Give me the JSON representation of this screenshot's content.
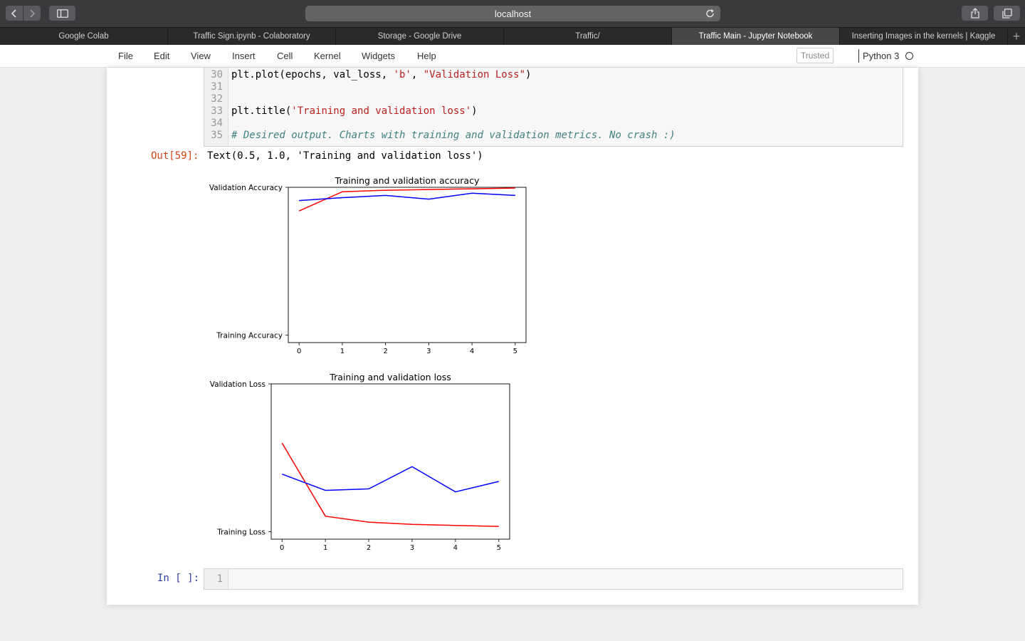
{
  "browser": {
    "url": "localhost",
    "tabs": [
      {
        "label": "Google Colab",
        "active": false
      },
      {
        "label": "Traffic Sign.ipynb - Colaboratory",
        "active": false
      },
      {
        "label": "Storage - Google Drive",
        "active": false
      },
      {
        "label": "Traffic/",
        "active": false
      },
      {
        "label": "Traffic Main - Jupyter Notebook",
        "active": true
      },
      {
        "label": "Inserting Images in the kernels | Kaggle",
        "active": false
      }
    ]
  },
  "menu": {
    "items": [
      "File",
      "Edit",
      "View",
      "Insert",
      "Cell",
      "Kernel",
      "Widgets",
      "Help"
    ],
    "trusted": "Trusted",
    "kernel": "Python 3"
  },
  "code_cell": {
    "lines": [
      {
        "num": "30",
        "parts": [
          {
            "t": "plt.plot(epochs, val_loss, "
          },
          {
            "t": "'b'",
            "c": "str"
          },
          {
            "t": ", "
          },
          {
            "t": "\"Validation Loss\"",
            "c": "str"
          },
          {
            "t": ")"
          }
        ]
      },
      {
        "num": "31",
        "parts": []
      },
      {
        "num": "32",
        "parts": []
      },
      {
        "num": "33",
        "parts": [
          {
            "t": "plt.title("
          },
          {
            "t": "'Training and validation loss'",
            "c": "str"
          },
          {
            "t": ")"
          }
        ]
      },
      {
        "num": "34",
        "parts": []
      },
      {
        "num": "35",
        "parts": [
          {
            "t": "# Desired output. Charts with training and validation metrics. No crash :)",
            "c": "cmt"
          }
        ]
      }
    ]
  },
  "output": {
    "prompt": "Out[59]:",
    "text": "Text(0.5, 1.0, 'Training and validation loss')"
  },
  "input_cell": {
    "prompt": "In [ ]:",
    "line_number": "1"
  },
  "chart_data": [
    {
      "type": "line",
      "title": "Training and validation accuracy",
      "x": [
        0,
        1,
        2,
        3,
        4,
        5
      ],
      "y_tick_labels": [
        "Training Accuracy",
        "Validation Accuracy"
      ],
      "y_ticks": [
        0,
        1
      ],
      "ylim": [
        -0.05,
        1.0
      ],
      "xlim": [
        -0.25,
        5.25
      ],
      "series": [
        {
          "color": "#ff0000",
          "values": [
            0.84,
            0.97,
            0.98,
            0.985,
            0.99,
            0.995
          ]
        },
        {
          "color": "#0000ff",
          "values": [
            0.91,
            0.93,
            0.945,
            0.92,
            0.96,
            0.945
          ]
        }
      ]
    },
    {
      "type": "line",
      "title": "Training and validation loss",
      "x": [
        0,
        1,
        2,
        3,
        4,
        5
      ],
      "y_tick_labels": [
        "Training Loss",
        "Validation Loss"
      ],
      "y_ticks": [
        0,
        1
      ],
      "ylim": [
        -0.05,
        1.0
      ],
      "xlim": [
        -0.25,
        5.25
      ],
      "series": [
        {
          "color": "#ff0000",
          "values": [
            0.6,
            0.105,
            0.065,
            0.05,
            0.043,
            0.036
          ]
        },
        {
          "color": "#0000ff",
          "values": [
            0.39,
            0.28,
            0.29,
            0.44,
            0.27,
            0.34
          ]
        }
      ]
    }
  ]
}
